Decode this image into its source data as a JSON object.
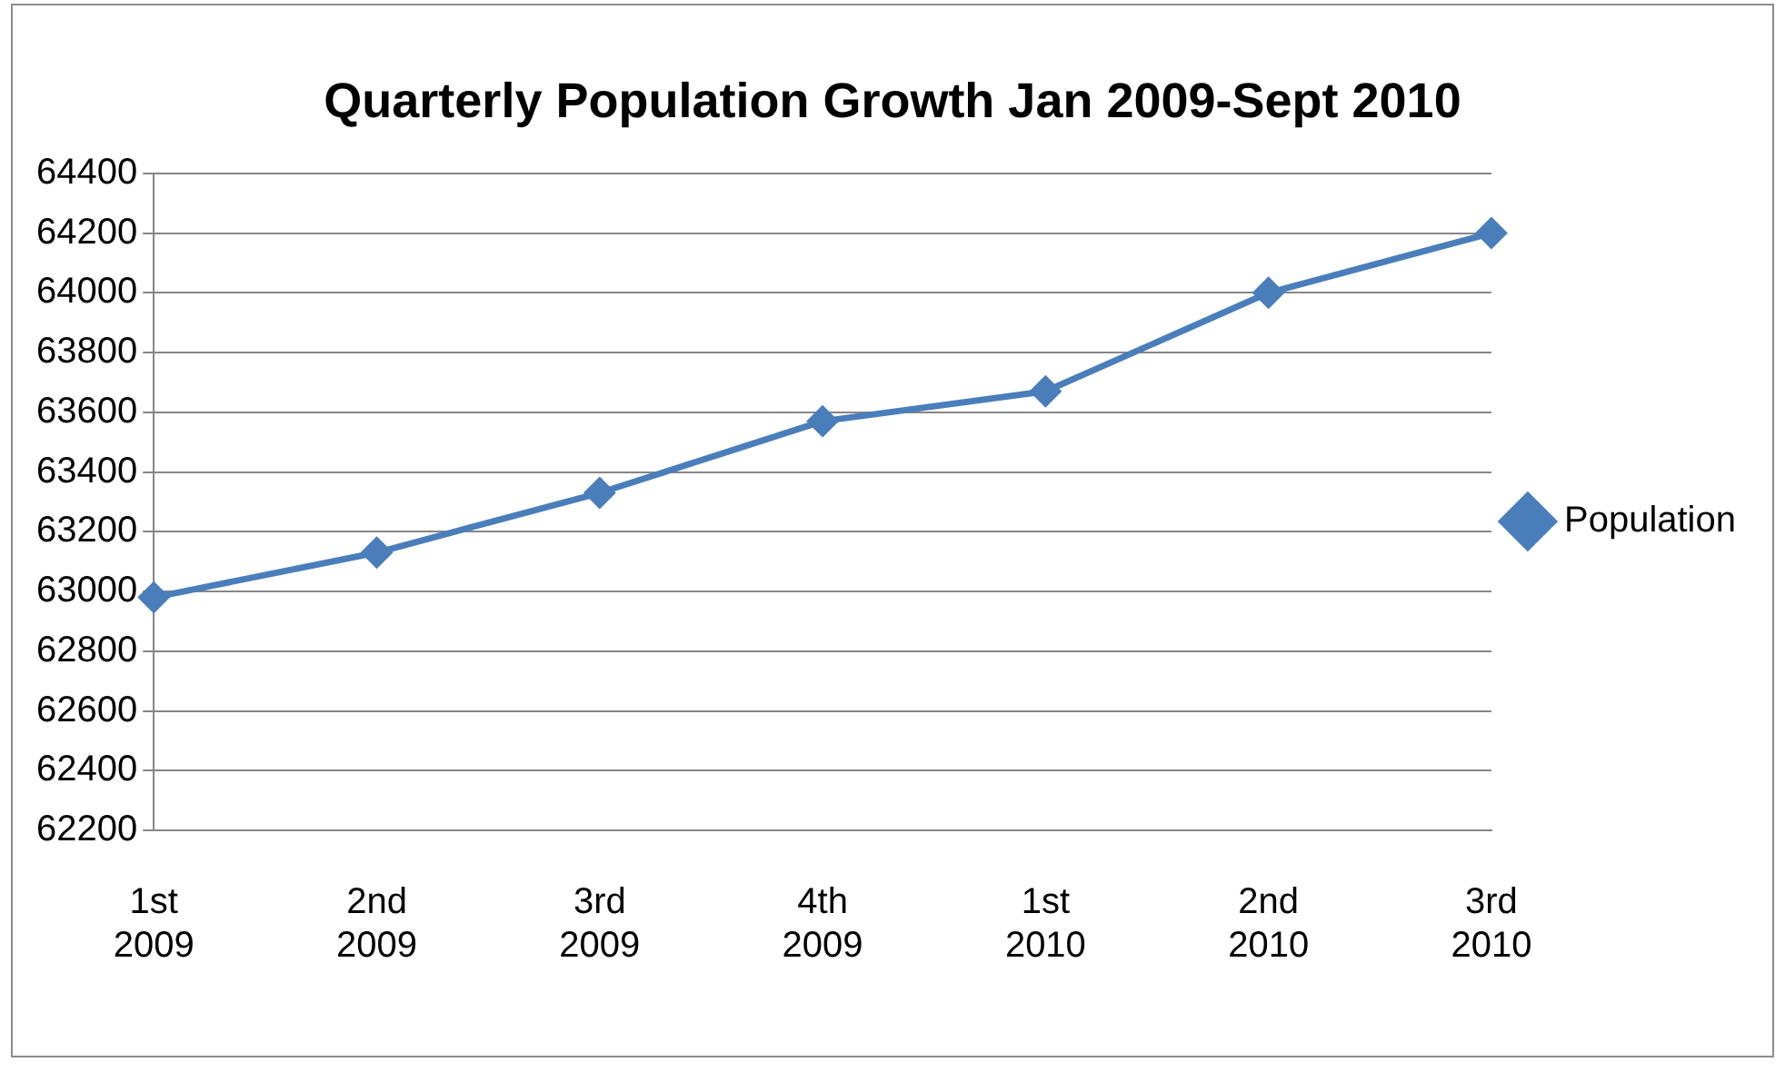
{
  "chart_data": {
    "type": "line",
    "title": "Quarterly Population Growth Jan 2009-Sept 2010",
    "categories": [
      "1st 2009",
      "2nd 2009",
      "3rd 2009",
      "4th 2009",
      "1st 2010",
      "2nd 2010",
      "3rd 2010"
    ],
    "series": [
      {
        "name": "Population",
        "color": "#4a7ebb",
        "values": [
          62980,
          63130,
          63330,
          63570,
          63670,
          64000,
          64200
        ]
      }
    ],
    "ylim": [
      62200,
      64400
    ],
    "yticks": [
      62200,
      62400,
      62600,
      62800,
      63000,
      63200,
      63400,
      63600,
      63800,
      64000,
      64200,
      64400
    ],
    "grid": "y",
    "legend": "right",
    "marker": "diamond",
    "line_style": "solid"
  }
}
